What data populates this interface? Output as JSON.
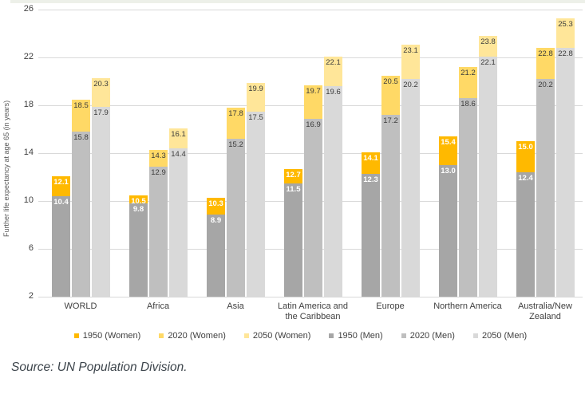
{
  "chart_data": {
    "type": "bar",
    "title": "",
    "ylabel": "Further life expectancy at age 65 (in years)",
    "ylim": [
      2,
      26
    ],
    "yticks": [
      2,
      6,
      10,
      14,
      18,
      22,
      26
    ],
    "grid": true,
    "data_labels": true,
    "legend_position": "bottom",
    "layout_hint": "Each category shows three overlaid bars (1950, 2020, 2050); women (yellow) drawn behind, men (grey) drawn in front, both starting at y=2",
    "categories": [
      "WORLD",
      "Africa",
      "Asia",
      "Latin America and the Caribbean",
      "Europe",
      "Northern America",
      "Australia/New Zealand"
    ],
    "category_lines": [
      [
        "WORLD"
      ],
      [
        "Africa"
      ],
      [
        "Asia"
      ],
      [
        "Latin America and",
        "the Caribbean"
      ],
      [
        "Europe"
      ],
      [
        "Northern America"
      ],
      [
        "Australia/New",
        "Zealand"
      ]
    ],
    "series": [
      {
        "name": "1950 (Women)",
        "color": "#FFB900",
        "label_color": "#FFFFFF",
        "values": [
          12.1,
          10.5,
          10.3,
          12.7,
          14.1,
          15.4,
          15.0
        ]
      },
      {
        "name": "2020 (Women)",
        "color": "#FFD966",
        "label_color": "#3B3B3B",
        "values": [
          18.5,
          14.3,
          17.8,
          19.7,
          20.5,
          21.2,
          22.8
        ]
      },
      {
        "name": "2050 (Women)",
        "color": "#FFE699",
        "label_color": "#3B3B3B",
        "values": [
          20.3,
          16.1,
          19.9,
          22.1,
          23.1,
          23.8,
          25.3
        ]
      },
      {
        "name": "1950 (Men)",
        "color": "#A6A6A6",
        "label_color": "#FFFFFF",
        "values": [
          10.4,
          9.8,
          8.9,
          11.5,
          12.3,
          13.0,
          12.4
        ]
      },
      {
        "name": "2020 (Men)",
        "color": "#BFBFBF",
        "label_color": "#3B3B3B",
        "values": [
          15.8,
          12.9,
          15.2,
          16.9,
          17.2,
          18.6,
          20.2
        ]
      },
      {
        "name": "2050 (Men)",
        "color": "#D9D9D9",
        "label_color": "#3B3B3B",
        "values": [
          17.9,
          14.4,
          17.5,
          19.6,
          20.2,
          22.1,
          22.8
        ]
      }
    ]
  },
  "source_note": "Source: UN Population Division."
}
